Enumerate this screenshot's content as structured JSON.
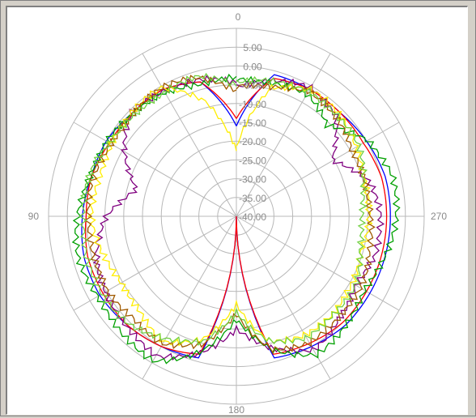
{
  "chart_data": {
    "type": "polar-line",
    "angle_labels": [
      "0",
      "90",
      "180",
      "270"
    ],
    "radial_tick_labels": [
      "5.00",
      "0.00",
      "-5.00",
      "-10.00",
      "-15.00",
      "-20.00",
      "-25.00",
      "-30.00",
      "-35.00",
      "-40.00"
    ],
    "radial_ticks": [
      5,
      0,
      -5,
      -10,
      -15,
      -20,
      -25,
      -30,
      -35,
      -40
    ],
    "rlim": [
      -40,
      10
    ],
    "angle_direction": "counterclockwise",
    "zero_location": "top",
    "grid": true,
    "angles_deg": [
      0,
      15,
      30,
      45,
      60,
      75,
      90,
      105,
      120,
      135,
      150,
      165,
      180,
      195,
      210,
      225,
      240,
      255,
      270,
      285,
      300,
      315,
      330,
      345,
      360
    ],
    "series": [
      {
        "color": "#0000ff",
        "values": [
          -16,
          -3,
          -1,
          -1,
          0,
          0,
          1,
          2,
          2,
          1,
          0,
          -1,
          -40,
          -1,
          0,
          1,
          1,
          1,
          1,
          1,
          0,
          -1,
          -1,
          -1,
          -16
        ]
      },
      {
        "color": "#ff0000",
        "values": [
          -14,
          -3,
          -1,
          -1,
          -1,
          0,
          0,
          1,
          1,
          1,
          0,
          -2,
          -40,
          -2,
          -1,
          0,
          0,
          0,
          0,
          0,
          -1,
          -1,
          -1,
          -2,
          -14
        ]
      },
      {
        "color": "#800080",
        "values": [
          -5,
          -2,
          -1,
          -1,
          -6,
          -12,
          -5,
          -2,
          0,
          2,
          3,
          -3,
          -10,
          -3,
          1,
          -2,
          -3,
          -1,
          -2,
          -4,
          -10,
          -2,
          -1,
          -3,
          -5
        ]
      },
      {
        "color": "#00a000",
        "values": [
          -3,
          -3,
          -2,
          -2,
          0,
          1,
          2,
          3,
          3,
          4,
          4,
          -3,
          -12,
          -3,
          2,
          1,
          0,
          1,
          2,
          3,
          1,
          -6,
          -3,
          -3,
          -3
        ]
      },
      {
        "color": "#ffee00",
        "values": [
          -22,
          -8,
          -1,
          -1,
          -1,
          -2,
          -2,
          -3,
          -4,
          -4,
          -2,
          -6,
          -16,
          -6,
          -4,
          -3,
          -4,
          -6,
          -5,
          -4,
          -3,
          -2,
          -1,
          -4,
          -22
        ]
      },
      {
        "color": "#a05a00",
        "values": [
          -6,
          -2,
          -1,
          -1,
          -1,
          -1,
          -1,
          0,
          0,
          -2,
          -1,
          -4,
          -14,
          -4,
          -1,
          -1,
          -2,
          -4,
          -4,
          -4,
          -5,
          -3,
          -1,
          -4,
          -6
        ]
      },
      {
        "color": "#70d040",
        "values": [
          -5,
          -2,
          -2,
          -1,
          -1,
          0,
          1,
          2,
          1,
          0,
          -2,
          -5,
          -15,
          -6,
          -2,
          -3,
          -4,
          -6,
          -6,
          -5,
          -3,
          -2,
          -1,
          -3,
          -5
        ]
      }
    ]
  }
}
